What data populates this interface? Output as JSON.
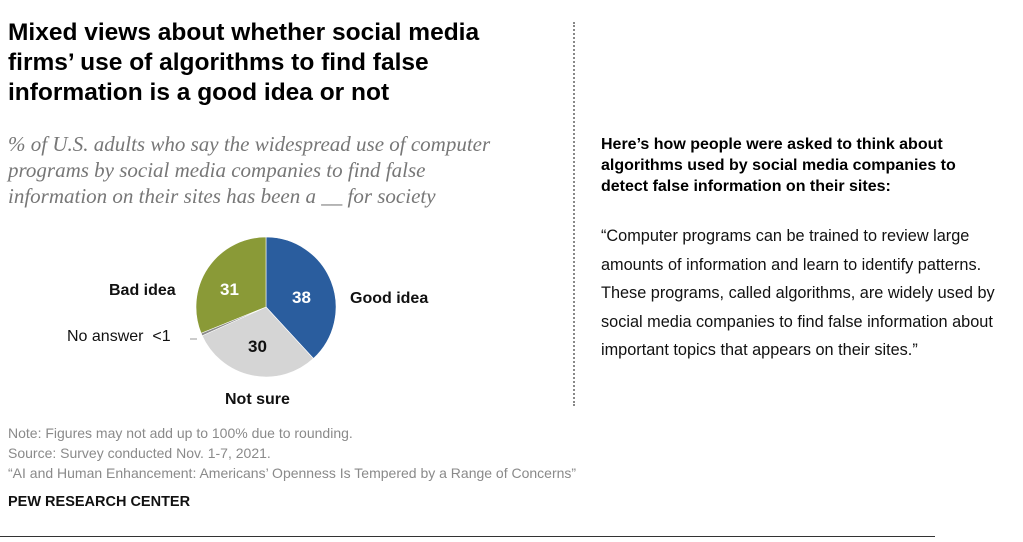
{
  "title": "Mixed views about whether social media firms’ use of algorithms to find false information is a good idea or not",
  "subtitle": "% of U.S. adults who say the widespread use of computer programs by social media companies to find false information on their sites has been a __ for society",
  "chart_data": {
    "type": "pie",
    "slices": [
      {
        "label": "Good idea",
        "value": 38,
        "display": "38",
        "color": "#2a5d9e"
      },
      {
        "label": "Not sure",
        "value": 30,
        "display": "30",
        "color": "#d5d5d5"
      },
      {
        "label": "No answer",
        "value": 0.6,
        "display": "<1",
        "color": "#8c8c8c"
      },
      {
        "label": "Bad idea",
        "value": 31,
        "display": "31",
        "color": "#8a9a37"
      }
    ]
  },
  "box": {
    "heading": "Here’s how people were asked to think about algorithms used by social media companies to detect false information on their sites:",
    "quote": "“Computer programs can be trained to review large amounts of information and learn to identify patterns. These programs, called algorithms, are widely used by social media companies to find false information about important topics that appears on their sites.”"
  },
  "notes": {
    "note": "Note: Figures may not add up to 100% due to rounding.",
    "source": "Source: Survey conducted Nov. 1-7, 2021.",
    "report": "“AI and Human Enhancement: Americans’ Openness Is Tempered by a Range of Concerns”"
  },
  "brand": "PEW RESEARCH CENTER"
}
